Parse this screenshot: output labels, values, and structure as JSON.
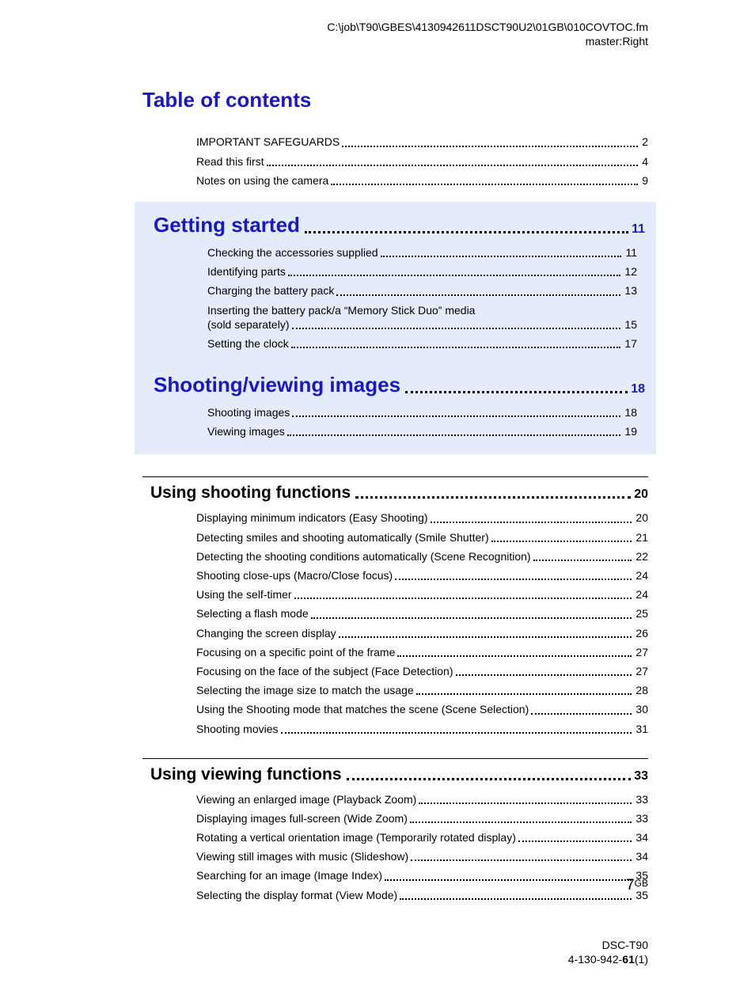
{
  "header": {
    "path": "C:\\job\\T90\\GBES\\4130942611DSCT90U2\\01GB\\010COVTOC.fm",
    "master": "master:Right"
  },
  "title": "Table of contents",
  "front_entries": [
    {
      "label": "IMPORTANT SAFEGUARDS",
      "page": "2"
    },
    {
      "label": "Read this first",
      "page": "4"
    },
    {
      "label": "Notes on using the camera",
      "page": "9"
    }
  ],
  "highlight_sections": [
    {
      "title": "Getting started",
      "page": "11",
      "entries": [
        {
          "label": "Checking the accessories supplied",
          "page": "11"
        },
        {
          "label": "Identifying parts",
          "page": "12"
        },
        {
          "label": "Charging the battery pack",
          "page": "13"
        },
        {
          "label": "Inserting the battery pack/a “Memory Stick Duo” media",
          "label2": "(sold separately)",
          "page": "15"
        },
        {
          "label": "Setting the clock",
          "page": "17"
        }
      ]
    },
    {
      "title": "Shooting/viewing images",
      "page": "18",
      "entries": [
        {
          "label": "Shooting images",
          "page": "18"
        },
        {
          "label": "Viewing images",
          "page": "19"
        }
      ]
    }
  ],
  "plain_sections": [
    {
      "title": "Using shooting functions",
      "page": "20",
      "entries": [
        {
          "label": "Displaying minimum indicators (Easy Shooting)",
          "page": "20"
        },
        {
          "label": "Detecting smiles and shooting automatically (Smile Shutter)",
          "page": "21"
        },
        {
          "label": "Detecting the shooting conditions automatically (Scene Recognition)",
          "page": "22"
        },
        {
          "label": "Shooting close-ups (Macro/Close focus)",
          "page": "24"
        },
        {
          "label": "Using the self-timer",
          "page": "24"
        },
        {
          "label": "Selecting a flash mode",
          "page": "25"
        },
        {
          "label": "Changing the screen display",
          "page": "26"
        },
        {
          "label": "Focusing on a specific point of the frame",
          "page": "27"
        },
        {
          "label": "Focusing on the face of the subject (Face Detection)",
          "page": "27"
        },
        {
          "label": "Selecting the image size to match the usage",
          "page": "28"
        },
        {
          "label": "Using the Shooting mode that matches the scene (Scene Selection)",
          "page": "30"
        },
        {
          "label": "Shooting movies",
          "page": "31"
        }
      ]
    },
    {
      "title": "Using viewing functions",
      "page": "33",
      "entries": [
        {
          "label": "Viewing an enlarged image (Playback Zoom)",
          "page": "33"
        },
        {
          "label": "Displaying images full-screen (Wide Zoom)",
          "page": "33"
        },
        {
          "label": "Rotating a vertical orientation image (Temporarily rotated display)",
          "page": "34"
        },
        {
          "label": "Viewing still images with music (Slideshow)",
          "page": "34"
        },
        {
          "label": "Searching for an image (Image Index)",
          "page": "35"
        },
        {
          "label": "Selecting the display format (View Mode)",
          "page": "35"
        }
      ]
    }
  ],
  "page_number": {
    "num": "7",
    "suffix": "GB"
  },
  "footer": {
    "model": "DSC-T90",
    "code_pre": "4-130-942-",
    "code_bold": "61",
    "code_post": "(1)"
  }
}
